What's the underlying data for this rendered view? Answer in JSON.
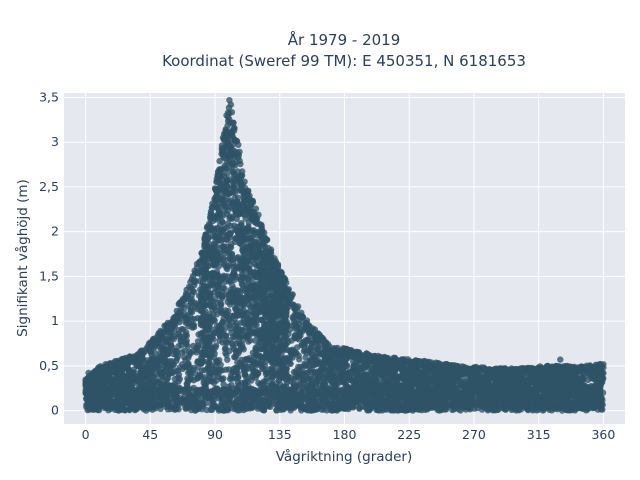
{
  "chart_data": {
    "type": "scatter",
    "title_lines": [
      "År 1979 - 2019",
      "Koordinat (Sweref 99 TM): E 450351, N 6181653"
    ],
    "xlabel": "Vågriktning (grader)",
    "ylabel": "Signifikant våghöjd (m)",
    "xlim": [
      -15,
      375
    ],
    "ylim": [
      -0.15,
      3.55
    ],
    "x_ticks": [
      0,
      45,
      90,
      135,
      180,
      225,
      270,
      315,
      360
    ],
    "x_tick_labels": [
      "0",
      "45",
      "90",
      "135",
      "180",
      "225",
      "270",
      "315",
      "360"
    ],
    "y_ticks": [
      0,
      0.5,
      1,
      1.5,
      2,
      2.5,
      3,
      3.5
    ],
    "y_tick_labels": [
      "0",
      "0,5",
      "1",
      "1,5",
      "2",
      "2,5",
      "3",
      "3,5"
    ],
    "grid": true,
    "marker_color": "#2e5266",
    "plot_background": "#e5e8ef",
    "series": [
      {
        "envelope_upper": [
          {
            "x": 0,
            "y": 0.35
          },
          {
            "x": 10,
            "y": 0.5
          },
          {
            "x": 20,
            "y": 0.55
          },
          {
            "x": 30,
            "y": 0.6
          },
          {
            "x": 40,
            "y": 0.68
          },
          {
            "x": 50,
            "y": 0.85
          },
          {
            "x": 60,
            "y": 1.05
          },
          {
            "x": 70,
            "y": 1.35
          },
          {
            "x": 80,
            "y": 1.75
          },
          {
            "x": 88,
            "y": 2.3
          },
          {
            "x": 95,
            "y": 3.0
          },
          {
            "x": 100,
            "y": 3.47
          },
          {
            "x": 105,
            "y": 3.1
          },
          {
            "x": 110,
            "y": 2.6
          },
          {
            "x": 120,
            "y": 2.2
          },
          {
            "x": 130,
            "y": 1.75
          },
          {
            "x": 140,
            "y": 1.45
          },
          {
            "x": 150,
            "y": 1.1
          },
          {
            "x": 160,
            "y": 0.9
          },
          {
            "x": 170,
            "y": 0.72
          },
          {
            "x": 180,
            "y": 0.7
          },
          {
            "x": 200,
            "y": 0.62
          },
          {
            "x": 220,
            "y": 0.58
          },
          {
            "x": 240,
            "y": 0.55
          },
          {
            "x": 260,
            "y": 0.5
          },
          {
            "x": 280,
            "y": 0.48
          },
          {
            "x": 300,
            "y": 0.47
          },
          {
            "x": 320,
            "y": 0.5
          },
          {
            "x": 340,
            "y": 0.5
          },
          {
            "x": 360,
            "y": 0.52
          }
        ],
        "notable_points": [
          {
            "x": 100,
            "y": 3.47
          },
          {
            "x": 101,
            "y": 3.42
          },
          {
            "x": 98,
            "y": 3.3
          },
          {
            "x": 129,
            "y": 1.8
          },
          {
            "x": 277,
            "y": 0.48
          },
          {
            "x": 330,
            "y": 0.57
          },
          {
            "x": 358,
            "y": 0.52
          },
          {
            "x": 2,
            "y": 0.42
          }
        ]
      }
    ]
  }
}
